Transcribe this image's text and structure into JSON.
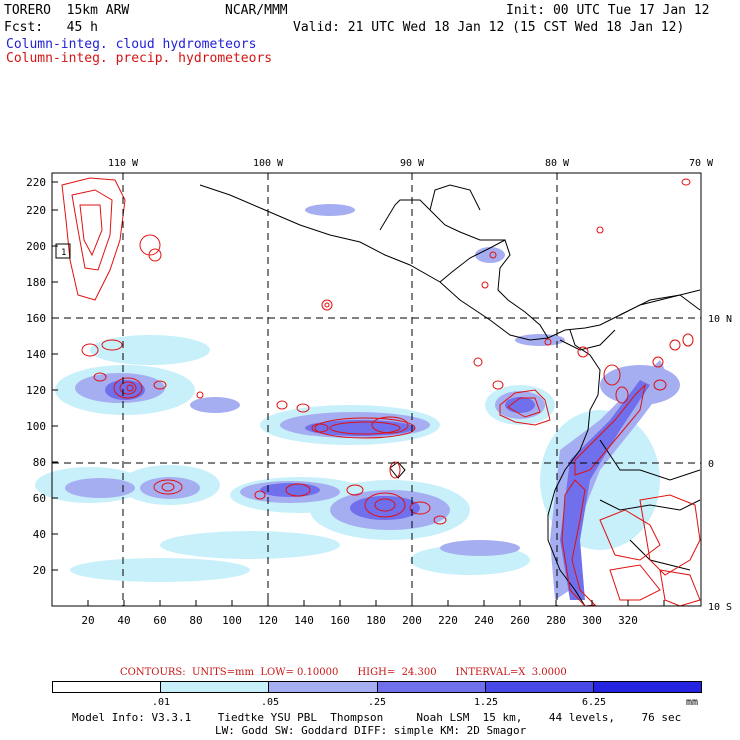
{
  "header": {
    "model": "TORERO  15km ARW",
    "center": "NCAR/MMM",
    "init": "Init: 00 UTC Tue 17 Jan 12",
    "fcst": "Fcst:   45 h",
    "valid": "Valid: 21 UTC Wed 18 Jan 12 (15 CST Wed 18 Jan 12)",
    "legend_cloud": "Column-integ. cloud hydrometeors",
    "legend_precip": "Column-integ. precip. hydrometeors"
  },
  "axes": {
    "x_ticks": [
      "20",
      "40",
      "60",
      "80",
      "100",
      "120",
      "140",
      "160",
      "180",
      "200",
      "220",
      "240",
      "260",
      "280",
      "300",
      "320"
    ],
    "y_ticks": [
      "20",
      "40",
      "60",
      "80",
      "100",
      "120",
      "140",
      "160",
      "180",
      "200",
      "220"
    ],
    "lon_labels": [
      "110 W",
      "100 W",
      "90 W",
      "80 W",
      "70 W"
    ],
    "lat_labels": [
      "10 N",
      "0",
      "10 S"
    ],
    "box_label": "1"
  },
  "colors": {
    "cloud_light": "#c8f0fa",
    "cloud_mid": "#a0a8f0",
    "cloud_dark": "#6a6af0",
    "precip_line": "#e01010",
    "coast_line": "#000000"
  },
  "footer": {
    "contours": "CONTOURS:  UNITS=mm  LOW= 0.10000      HIGH=  24.300      INTERVAL=X  3.0000",
    "colorbar_labels": [
      ".01",
      ".05",
      ".25",
      "1.25",
      "6.25",
      "mm"
    ],
    "colorbar_colors": [
      "#ffffff",
      "#c8f0fa",
      "#a6aef2",
      "#7070ec",
      "#4848e6",
      "#2424e0"
    ],
    "model_info": "Model Info: V3.3.1    Tiedtke YSU PBL  Thompson     Noah LSM  15 km,    44 levels,    76 sec",
    "model_info2": "LW: Godd SW: Goddard DIFF: simple KM: 2D Smagor"
  }
}
